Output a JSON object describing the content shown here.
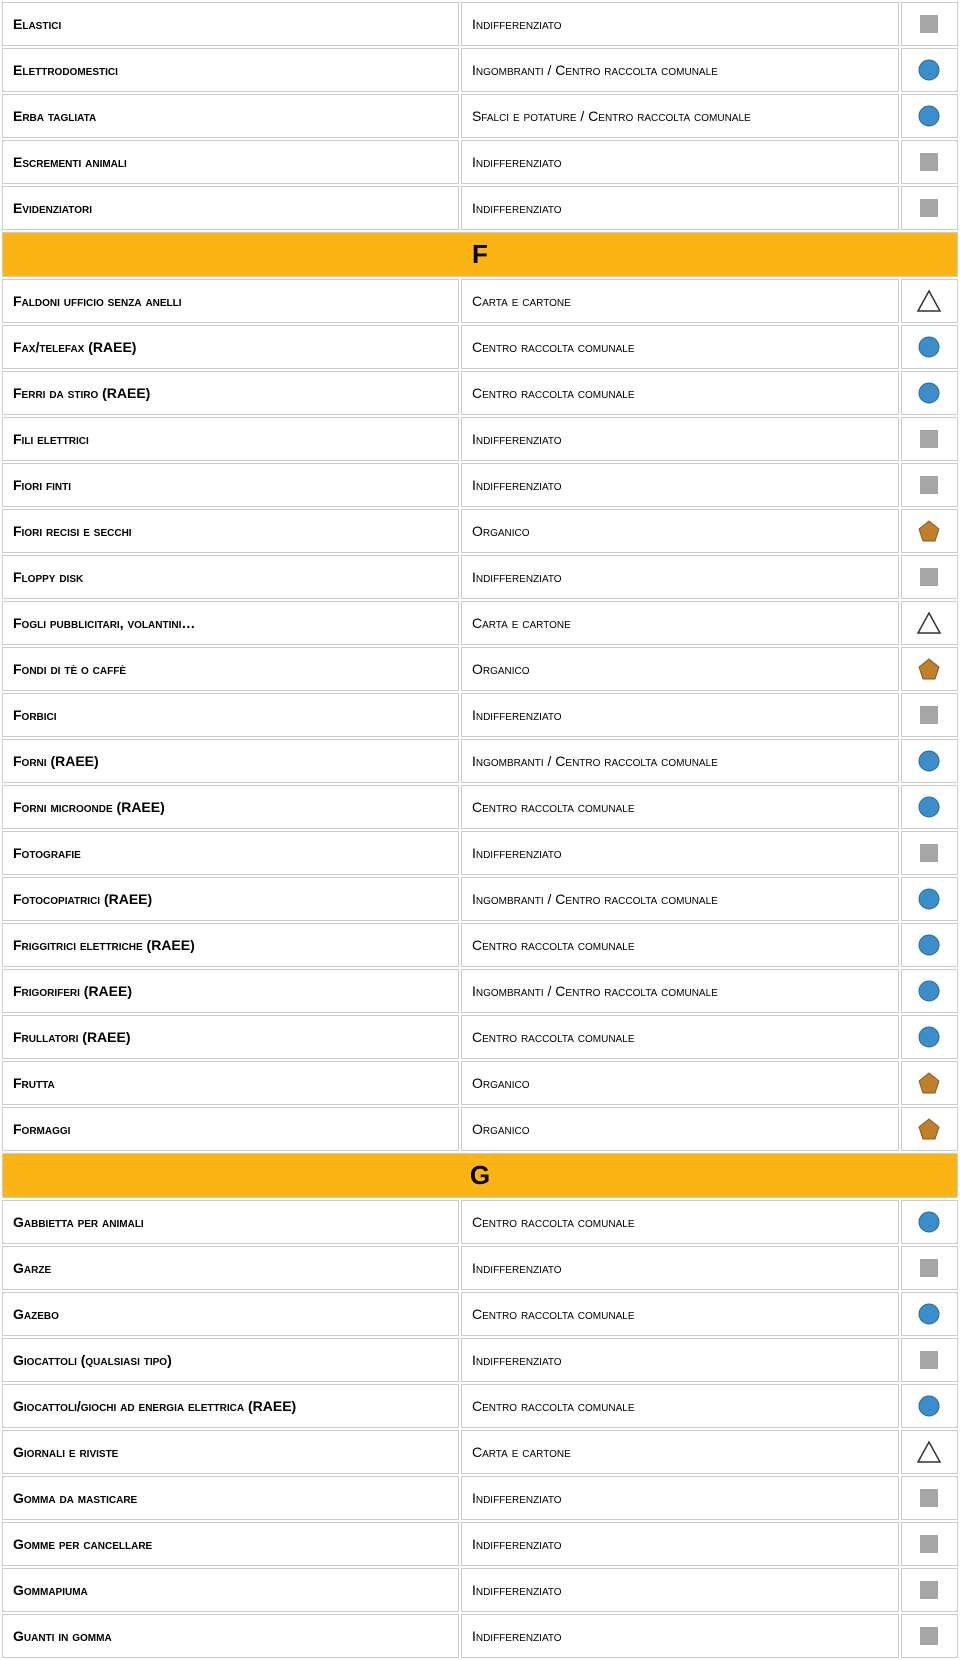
{
  "colors": {
    "letter_bg": "#fcb414",
    "border": "#cccccc",
    "square": "#a6a6a6",
    "circle_fill": "#3c8ecb",
    "circle_stroke": "#2a6a9a",
    "pentagon_fill": "#c07f2b",
    "pentagon_stroke": "#8a5a1e",
    "triangle_stroke": "#333333"
  },
  "rows": [
    {
      "type": "item",
      "item": "Elastici",
      "category": "Indifferenziato",
      "icon": "square"
    },
    {
      "type": "item",
      "item": "Elettrodomestici",
      "category": "Ingombranti / Centro raccolta comunale",
      "icon": "circle"
    },
    {
      "type": "item",
      "item": "Erba tagliata",
      "category": "Sfalci e potature / Centro raccolta comunale",
      "icon": "circle"
    },
    {
      "type": "item",
      "item": "Escrementi animali",
      "category": "Indifferenziato",
      "icon": "square"
    },
    {
      "type": "item",
      "item": "Evidenziatori",
      "category": "Indifferenziato",
      "icon": "square"
    },
    {
      "type": "letter",
      "label": "F"
    },
    {
      "type": "item",
      "item": "Faldoni  ufficio senza anelli",
      "category": "Carta e cartone",
      "icon": "triangle"
    },
    {
      "type": "item",
      "item": "Fax/telefax (RAEE)",
      "category": "Centro raccolta comunale",
      "icon": "circle"
    },
    {
      "type": "item",
      "item": "Ferri da stiro (RAEE)",
      "category": "Centro raccolta comunale",
      "icon": "circle"
    },
    {
      "type": "item",
      "item": "Fili elettrici",
      "category": "Indifferenziato",
      "icon": "square"
    },
    {
      "type": "item",
      "item": "Fiori finti",
      "category": "Indifferenziato",
      "icon": "square"
    },
    {
      "type": "item",
      "item": "Fiori recisi e secchi",
      "category": "Organico",
      "icon": "pentagon"
    },
    {
      "type": "item",
      "item": "Floppy disk",
      "category": "Indifferenziato",
      "icon": "square"
    },
    {
      "type": "item",
      "item": "Fogli pubblicitari, volantini…",
      "category": "Carta e cartone",
      "icon": "triangle"
    },
    {
      "type": "item",
      "item": "Fondi di tè o caffè",
      "category": "Organico",
      "icon": "pentagon"
    },
    {
      "type": "item",
      "item": "Forbici",
      "category": "Indifferenziato",
      "icon": "square"
    },
    {
      "type": "item",
      "item": "Forni (RAEE)",
      "category": "Ingombranti / Centro raccolta comunale",
      "icon": "circle"
    },
    {
      "type": "item",
      "item": "Forni microonde (RAEE)",
      "category": "Centro raccolta comunale",
      "icon": "circle"
    },
    {
      "type": "item",
      "item": "Fotografie",
      "category": "Indifferenziato",
      "icon": "square"
    },
    {
      "type": "item",
      "item": "Fotocopiatrici (RAEE)",
      "category": "Ingombranti / Centro raccolta comunale",
      "icon": "circle"
    },
    {
      "type": "item",
      "item": "Friggitrici elettriche (RAEE)",
      "category": "Centro raccolta comunale",
      "icon": "circle"
    },
    {
      "type": "item",
      "item": "Frigoriferi (RAEE)",
      "category": "Ingombranti / Centro raccolta comunale",
      "icon": "circle"
    },
    {
      "type": "item",
      "item": "Frullatori (RAEE)",
      "category": "Centro raccolta comunale",
      "icon": "circle"
    },
    {
      "type": "item",
      "item": "Frutta",
      "category": "Organico",
      "icon": "pentagon"
    },
    {
      "type": "item",
      "item": "Formaggi",
      "category": "Organico",
      "icon": "pentagon"
    },
    {
      "type": "letter",
      "label": "G"
    },
    {
      "type": "item",
      "item": "Gabbietta per animali",
      "category": "Centro raccolta comunale",
      "icon": "circle"
    },
    {
      "type": "item",
      "item": "Garze",
      "category": "Indifferenziato",
      "icon": "square"
    },
    {
      "type": "item",
      "item": "Gazebo",
      "category": "Centro raccolta comunale",
      "icon": "circle"
    },
    {
      "type": "item",
      "item": "Giocattoli  (qualsiasi tipo)",
      "category": "Indifferenziato",
      "icon": "square"
    },
    {
      "type": "item",
      "item": "Giocattoli/giochi ad energia elettrica (RAEE)",
      "category": "Centro raccolta comunale",
      "icon": "circle"
    },
    {
      "type": "item",
      "item": "Giornali e riviste",
      "category": "Carta e cartone",
      "icon": "triangle"
    },
    {
      "type": "item",
      "item": "Gomma da masticare",
      "category": "Indifferenziato",
      "icon": "square"
    },
    {
      "type": "item",
      "item": "Gomme per cancellare",
      "category": "Indifferenziato",
      "icon": "square"
    },
    {
      "type": "item",
      "item": "Gommapiuma",
      "category": "Indifferenziato",
      "icon": "square"
    },
    {
      "type": "item",
      "item": "Guanti in gomma",
      "category": "Indifferenziato",
      "icon": "square"
    }
  ]
}
